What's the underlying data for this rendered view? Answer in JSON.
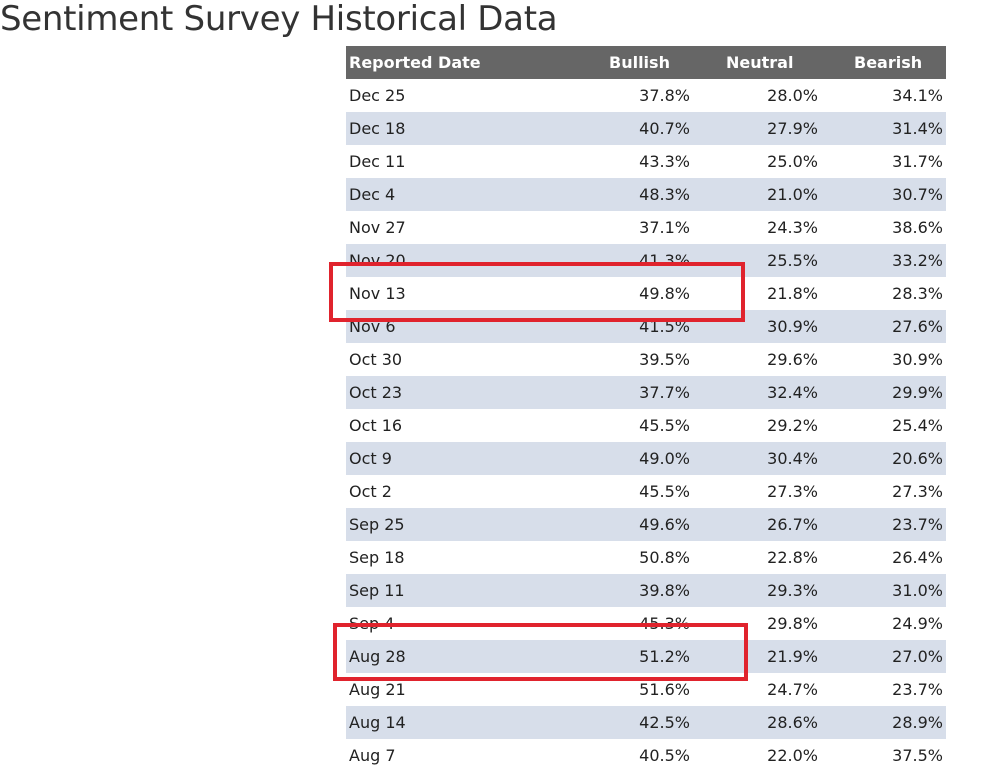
{
  "page": {
    "title": "Sentiment Survey Historical Data"
  },
  "table": {
    "headers": {
      "date": "Reported Date",
      "bullish": "Bullish",
      "neutral": "Neutral",
      "bearish": "Bearish"
    },
    "rows": [
      {
        "date": "Dec 25",
        "bullish": "37.8%",
        "neutral": "28.0%",
        "bearish": "34.1%"
      },
      {
        "date": "Dec 18",
        "bullish": "40.7%",
        "neutral": "27.9%",
        "bearish": "31.4%"
      },
      {
        "date": "Dec 11",
        "bullish": "43.3%",
        "neutral": "25.0%",
        "bearish": "31.7%"
      },
      {
        "date": "Dec 4",
        "bullish": "48.3%",
        "neutral": "21.0%",
        "bearish": "30.7%"
      },
      {
        "date": "Nov 27",
        "bullish": "37.1%",
        "neutral": "24.3%",
        "bearish": "38.6%"
      },
      {
        "date": "Nov 20",
        "bullish": "41.3%",
        "neutral": "25.5%",
        "bearish": "33.2%"
      },
      {
        "date": "Nov 13",
        "bullish": "49.8%",
        "neutral": "21.8%",
        "bearish": "28.3%"
      },
      {
        "date": "Nov 6",
        "bullish": "41.5%",
        "neutral": "30.9%",
        "bearish": "27.6%"
      },
      {
        "date": "Oct 30",
        "bullish": "39.5%",
        "neutral": "29.6%",
        "bearish": "30.9%"
      },
      {
        "date": "Oct 23",
        "bullish": "37.7%",
        "neutral": "32.4%",
        "bearish": "29.9%"
      },
      {
        "date": "Oct 16",
        "bullish": "45.5%",
        "neutral": "29.2%",
        "bearish": "25.4%"
      },
      {
        "date": "Oct 9",
        "bullish": "49.0%",
        "neutral": "30.4%",
        "bearish": "20.6%"
      },
      {
        "date": "Oct 2",
        "bullish": "45.5%",
        "neutral": "27.3%",
        "bearish": "27.3%"
      },
      {
        "date": "Sep 25",
        "bullish": "49.6%",
        "neutral": "26.7%",
        "bearish": "23.7%"
      },
      {
        "date": "Sep 18",
        "bullish": "50.8%",
        "neutral": "22.8%",
        "bearish": "26.4%"
      },
      {
        "date": "Sep 11",
        "bullish": "39.8%",
        "neutral": "29.3%",
        "bearish": "31.0%"
      },
      {
        "date": "Sep 4",
        "bullish": "45.3%",
        "neutral": "29.8%",
        "bearish": "24.9%"
      },
      {
        "date": "Aug 28",
        "bullish": "51.2%",
        "neutral": "21.9%",
        "bearish": "27.0%"
      },
      {
        "date": "Aug 21",
        "bullish": "51.6%",
        "neutral": "24.7%",
        "bearish": "23.7%"
      },
      {
        "date": "Aug 14",
        "bullish": "42.5%",
        "neutral": "28.6%",
        "bearish": "28.9%"
      },
      {
        "date": "Aug 7",
        "bullish": "40.5%",
        "neutral": "22.0%",
        "bearish": "37.5%"
      }
    ]
  },
  "colors": {
    "header_bg": "#666666",
    "stripe_bg": "#d7deea",
    "highlight": "#e0232d"
  }
}
